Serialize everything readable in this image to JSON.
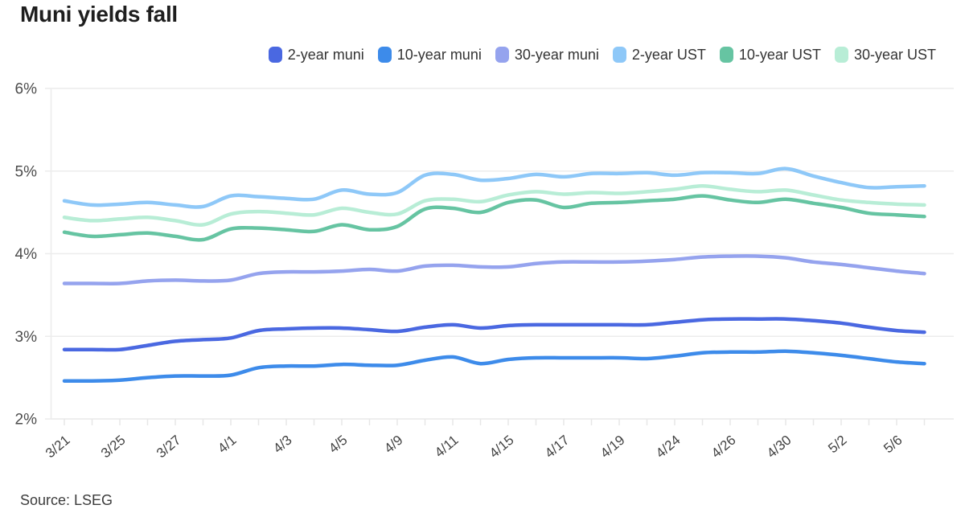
{
  "title": "Muni yields fall",
  "source_note": "Source: LSEG",
  "chart_data": {
    "type": "line",
    "title": "Muni yields fall",
    "grid": true,
    "legend_position": "top-right",
    "y_axis": {
      "min": 2,
      "max": 6,
      "tick_values": [
        6,
        5,
        4,
        3,
        2
      ],
      "tick_labels": [
        "6%",
        "5%",
        "4%",
        "3%",
        "2%"
      ]
    },
    "x_axis": {
      "tick_labels": [
        "3/21",
        "",
        "3/25",
        "",
        "3/27",
        "",
        "4/1",
        "",
        "4/3",
        "",
        "4/5",
        "",
        "4/9",
        "",
        "4/11",
        "",
        "4/15",
        "",
        "4/17",
        "",
        "4/19",
        "",
        "4/24",
        "",
        "4/26",
        "",
        "4/30",
        "",
        "5/2",
        "",
        "5/6",
        ""
      ]
    },
    "series": [
      {
        "name": "2-year muni",
        "color": "#4a68e1",
        "values": [
          2.84,
          2.84,
          2.84,
          2.89,
          2.94,
          2.96,
          2.98,
          3.07,
          3.09,
          3.1,
          3.1,
          3.08,
          3.06,
          3.11,
          3.14,
          3.1,
          3.13,
          3.14,
          3.14,
          3.14,
          3.14,
          3.14,
          3.17,
          3.2,
          3.21,
          3.21,
          3.21,
          3.19,
          3.16,
          3.11,
          3.07,
          3.05
        ]
      },
      {
        "name": "10-year muni",
        "color": "#3d8bea",
        "values": [
          2.46,
          2.46,
          2.47,
          2.5,
          2.52,
          2.52,
          2.53,
          2.62,
          2.64,
          2.64,
          2.66,
          2.65,
          2.65,
          2.71,
          2.75,
          2.67,
          2.72,
          2.74,
          2.74,
          2.74,
          2.74,
          2.73,
          2.76,
          2.8,
          2.81,
          2.81,
          2.82,
          2.8,
          2.77,
          2.73,
          2.69,
          2.67
        ]
      },
      {
        "name": "30-year muni",
        "color": "#95a3ee",
        "values": [
          3.64,
          3.64,
          3.64,
          3.67,
          3.68,
          3.67,
          3.68,
          3.76,
          3.78,
          3.78,
          3.79,
          3.81,
          3.79,
          3.85,
          3.86,
          3.84,
          3.84,
          3.88,
          3.9,
          3.9,
          3.9,
          3.91,
          3.93,
          3.96,
          3.97,
          3.97,
          3.95,
          3.9,
          3.87,
          3.83,
          3.79,
          3.76
        ]
      },
      {
        "name": "2-year UST",
        "color": "#8ec8f8",
        "values": [
          4.64,
          4.59,
          4.6,
          4.62,
          4.59,
          4.57,
          4.7,
          4.69,
          4.67,
          4.66,
          4.77,
          4.72,
          4.74,
          4.95,
          4.96,
          4.89,
          4.91,
          4.96,
          4.93,
          4.97,
          4.97,
          4.98,
          4.95,
          4.98,
          4.98,
          4.97,
          5.03,
          4.94,
          4.86,
          4.8,
          4.81,
          4.82
        ]
      },
      {
        "name": "10-year UST",
        "color": "#66c4a2",
        "values": [
          4.26,
          4.21,
          4.23,
          4.25,
          4.21,
          4.17,
          4.3,
          4.31,
          4.29,
          4.27,
          4.35,
          4.29,
          4.33,
          4.54,
          4.55,
          4.5,
          4.62,
          4.65,
          4.56,
          4.61,
          4.62,
          4.64,
          4.66,
          4.7,
          4.65,
          4.62,
          4.66,
          4.61,
          4.56,
          4.49,
          4.47,
          4.45
        ]
      },
      {
        "name": "30-year UST",
        "color": "#b8edd6",
        "values": [
          4.44,
          4.4,
          4.42,
          4.44,
          4.4,
          4.35,
          4.48,
          4.51,
          4.49,
          4.47,
          4.55,
          4.5,
          4.48,
          4.64,
          4.66,
          4.63,
          4.71,
          4.75,
          4.72,
          4.74,
          4.73,
          4.75,
          4.78,
          4.82,
          4.78,
          4.75,
          4.77,
          4.71,
          4.65,
          4.62,
          4.6,
          4.59
        ]
      }
    ]
  }
}
